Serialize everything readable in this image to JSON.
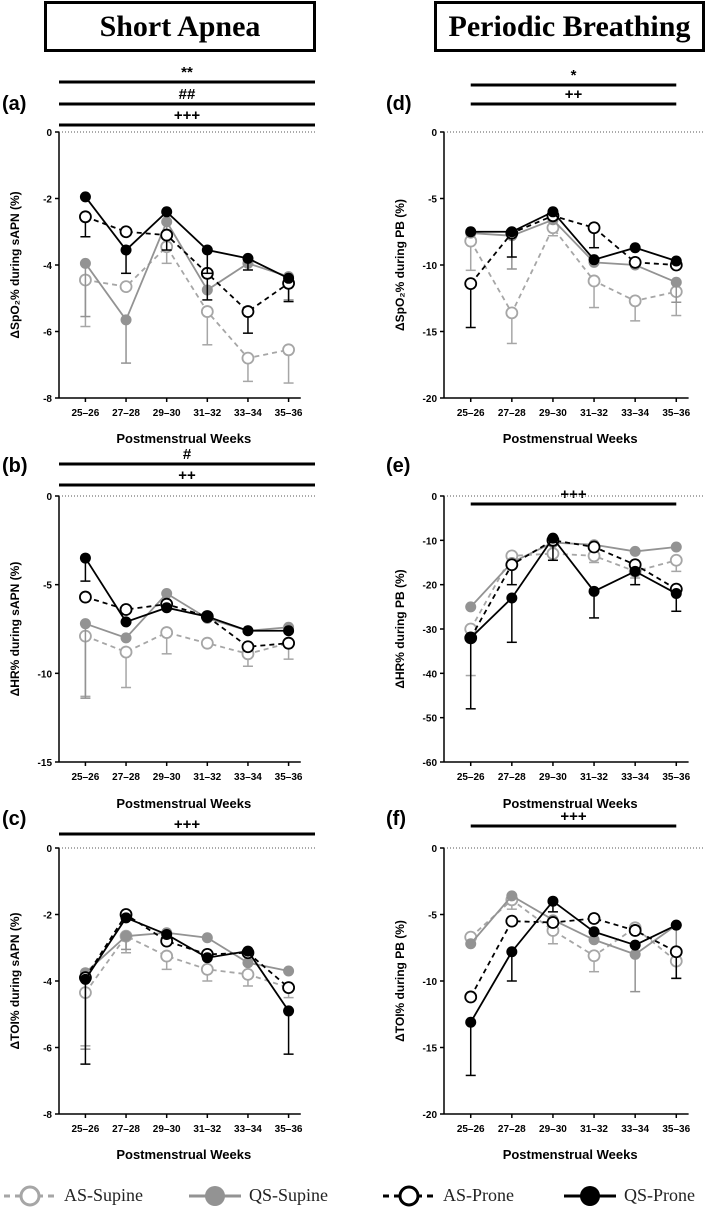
{
  "headers": {
    "left": "Short Apnea",
    "right": "Periodic Breathing"
  },
  "colors": {
    "as_supine": "#a6a6a6",
    "qs_supine": "#939393",
    "as_prone": "#000000",
    "qs_prone": "#000000"
  },
  "legend": [
    {
      "key": "as_supine",
      "label": "AS-Supine"
    },
    {
      "key": "qs_supine",
      "label": "QS-Supine"
    },
    {
      "key": "as_prone",
      "label": "AS-Prone"
    },
    {
      "key": "qs_prone",
      "label": "QS-Prone"
    }
  ],
  "chart_data": [
    {
      "panel": "(a)",
      "type": "line",
      "ylabel": "ΔSpO₂% during sAPN  (%)",
      "xlabel": "Postmenstrual Weeks",
      "categories": [
        "25–26",
        "27–28",
        "29–30",
        "31–32",
        "33–34",
        "35–36"
      ],
      "ylim": [
        -8,
        0
      ],
      "yticks": [
        0,
        -2,
        -4,
        -6,
        -8
      ],
      "significance": [
        {
          "label": "**",
          "span": [
            0,
            5
          ]
        },
        {
          "label": "##",
          "span": [
            0,
            5
          ]
        },
        {
          "label": "+++",
          "span": [
            0,
            5
          ]
        }
      ],
      "series": [
        {
          "key": "as_supine",
          "name": "AS-Supine",
          "values": [
            -4.45,
            -4.65,
            -3.45,
            -5.4,
            -6.8,
            -6.55
          ],
          "err": [
            1.4,
            0,
            0.5,
            1.0,
            0.7,
            1.0
          ],
          "dir": "down"
        },
        {
          "key": "qs_supine",
          "name": "QS-Supine",
          "values": [
            -3.95,
            -5.65,
            -2.7,
            -4.75,
            -3.95,
            -4.35
          ],
          "err": [
            1.6,
            1.3,
            0.5,
            0,
            0,
            0.7
          ],
          "dir": "down"
        },
        {
          "key": "as_prone",
          "name": "AS-Prone",
          "values": [
            -2.55,
            -3.0,
            -3.1,
            -4.25,
            -5.4,
            -4.55
          ],
          "err": [
            0.6,
            0,
            0.45,
            0.8,
            0.65,
            0.55
          ],
          "dir": "down"
        },
        {
          "key": "qs_prone",
          "name": "QS-Prone",
          "values": [
            -1.95,
            -3.55,
            -2.4,
            -3.55,
            -3.8,
            -4.4
          ],
          "err": [
            0,
            0.7,
            0,
            0.7,
            0.35,
            0
          ],
          "dir": "down"
        }
      ]
    },
    {
      "panel": "(b)",
      "type": "line",
      "ylabel": "ΔHR% during sAPN  (%)",
      "xlabel": "Postmenstrual Weeks",
      "categories": [
        "25–26",
        "27–28",
        "29–30",
        "31–32",
        "33–34",
        "35–36"
      ],
      "ylim": [
        -15,
        0
      ],
      "yticks": [
        0,
        -5,
        -10,
        -15
      ],
      "significance": [
        {
          "label": "#",
          "span": [
            0,
            5
          ]
        },
        {
          "label": "++",
          "span": [
            0,
            5
          ]
        }
      ],
      "series": [
        {
          "key": "as_supine",
          "name": "AS-Supine",
          "values": [
            -7.9,
            -8.8,
            -7.7,
            -8.3,
            -8.9,
            -8.3
          ],
          "err": [
            3.4,
            2.0,
            1.2,
            0,
            0.7,
            0.9
          ],
          "dir": "down"
        },
        {
          "key": "qs_supine",
          "name": "QS-Supine",
          "values": [
            -7.2,
            -8.0,
            -5.5,
            -6.9,
            -7.6,
            -7.4
          ],
          "err": [
            4.2,
            0,
            0,
            0,
            0,
            0
          ],
          "dir": "down"
        },
        {
          "key": "as_prone",
          "name": "AS-Prone",
          "values": [
            -5.7,
            -6.4,
            -6.1,
            -6.8,
            -8.5,
            -8.3
          ],
          "err": [
            0,
            0,
            0,
            0,
            0,
            0
          ],
          "dir": "down"
        },
        {
          "key": "qs_prone",
          "name": "QS-Prone",
          "values": [
            -3.5,
            -7.1,
            -6.3,
            -6.8,
            -7.6,
            -7.6
          ],
          "err": [
            1.3,
            0,
            0,
            0,
            0,
            0
          ],
          "dir": "down"
        }
      ]
    },
    {
      "panel": "(c)",
      "type": "line",
      "ylabel": "ΔTOI% during sAPN  (%)",
      "xlabel": "Postmenstrual Weeks",
      "categories": [
        "25–26",
        "27–28",
        "29–30",
        "31–32",
        "33–34",
        "35–36"
      ],
      "ylim": [
        -8,
        0
      ],
      "yticks": [
        0,
        -2,
        -4,
        -6,
        -8
      ],
      "significance": [
        {
          "label": "+++",
          "span": [
            0,
            5
          ]
        }
      ],
      "series": [
        {
          "key": "as_supine",
          "name": "AS-Supine",
          "values": [
            -4.35,
            -2.65,
            -3.25,
            -3.65,
            -3.8,
            -4.2
          ],
          "err": [
            1.6,
            0.5,
            0.4,
            0.35,
            0.35,
            0.3
          ],
          "dir": "down"
        },
        {
          "key": "qs_supine",
          "name": "QS-Supine",
          "values": [
            -3.75,
            -2.65,
            -2.55,
            -2.7,
            -3.45,
            -3.7
          ],
          "err": [
            2.3,
            0.4,
            0,
            0,
            0,
            0
          ],
          "dir": "down"
        },
        {
          "key": "as_prone",
          "name": "AS-Prone",
          "values": [
            -3.9,
            -2.0,
            -2.8,
            -3.2,
            -3.15,
            -4.2
          ],
          "err": [
            0,
            0,
            0,
            0,
            0,
            0
          ],
          "dir": "down"
        },
        {
          "key": "qs_prone",
          "name": "QS-Prone",
          "values": [
            -3.95,
            -2.1,
            -2.6,
            -3.3,
            -3.1,
            -4.9
          ],
          "err": [
            2.55,
            0,
            0,
            0,
            0,
            1.3
          ],
          "dir": "down"
        }
      ]
    },
    {
      "panel": "(d)",
      "type": "line",
      "ylabel": "ΔSpO₂% during PB  (%)",
      "xlabel": "Postmenstrual Weeks",
      "categories": [
        "25–26",
        "27–28",
        "29–30",
        "31–32",
        "33–34",
        "35–36"
      ],
      "ylim": [
        -20,
        0
      ],
      "yticks": [
        0,
        -5,
        -10,
        -15,
        -20
      ],
      "significance": [
        {
          "label": "*",
          "span": [
            0,
            5
          ]
        },
        {
          "label": "++",
          "span": [
            0,
            5
          ]
        }
      ],
      "series": [
        {
          "key": "as_supine",
          "name": "AS-Supine",
          "values": [
            -8.2,
            -13.6,
            -7.2,
            -11.2,
            -12.7,
            -12.0
          ],
          "err": [
            2.2,
            2.3,
            0.6,
            2.0,
            1.5,
            1.8
          ],
          "dir": "down"
        },
        {
          "key": "qs_supine",
          "name": "QS-Supine",
          "values": [
            -7.6,
            -7.8,
            -6.6,
            -9.8,
            -10.0,
            -11.3
          ],
          "err": [
            0,
            2.5,
            0,
            0,
            0,
            1.5
          ],
          "dir": "down"
        },
        {
          "key": "as_prone",
          "name": "AS-Prone",
          "values": [
            -11.4,
            -7.6,
            -6.3,
            -7.2,
            -9.8,
            -10.0
          ],
          "err": [
            3.3,
            1.8,
            0,
            1.5,
            0,
            0
          ],
          "dir": "down"
        },
        {
          "key": "qs_prone",
          "name": "QS-Prone",
          "values": [
            -7.5,
            -7.5,
            -6.0,
            -9.6,
            -8.7,
            -9.7
          ],
          "err": [
            0,
            0,
            0,
            0,
            0,
            0
          ],
          "dir": "down"
        }
      ]
    },
    {
      "panel": "(e)",
      "type": "line",
      "ylabel": "ΔHR% during PB  (%)",
      "xlabel": "Postmenstrual Weeks",
      "categories": [
        "25–26",
        "27–28",
        "29–30",
        "31–32",
        "33–34",
        "35–36"
      ],
      "ylim": [
        -60,
        0
      ],
      "yticks": [
        0,
        -10,
        -20,
        -30,
        -40,
        -50,
        -60
      ],
      "significance": [
        {
          "label": "+++",
          "span": [
            0,
            5
          ]
        }
      ],
      "series": [
        {
          "key": "as_supine",
          "name": "AS-Supine",
          "values": [
            -30.0,
            -13.5,
            -13.0,
            -13.5,
            -17.0,
            -14.5
          ],
          "err": [
            10.5,
            0,
            0,
            1.5,
            1.5,
            2.5
          ],
          "dir": "down"
        },
        {
          "key": "qs_supine",
          "name": "QS-Supine",
          "values": [
            -25.0,
            -15.0,
            -10.5,
            -11.0,
            -12.5,
            -11.5
          ],
          "err": [
            0,
            0,
            0,
            0,
            0,
            0
          ],
          "dir": "down"
        },
        {
          "key": "as_prone",
          "name": "AS-Prone",
          "values": [
            -32.0,
            -15.5,
            -10.0,
            -11.5,
            -15.5,
            -21.0
          ],
          "err": [
            0,
            4.5,
            4.5,
            0,
            4.5,
            0
          ],
          "dir": "down"
        },
        {
          "key": "qs_prone",
          "name": "QS-Prone",
          "values": [
            -32.0,
            -23.0,
            -9.5,
            -21.5,
            -17.0,
            -22.0
          ],
          "err": [
            16.0,
            10.0,
            0,
            6.0,
            0,
            4.0
          ],
          "dir": "down"
        }
      ]
    },
    {
      "panel": "(f)",
      "type": "line",
      "ylabel": "ΔTOI% during PB  (%)",
      "xlabel": "Postmenstrual Weeks",
      "categories": [
        "25–26",
        "27–28",
        "29–30",
        "31–32",
        "33–34",
        "35–36"
      ],
      "ylim": [
        -20,
        0
      ],
      "yticks": [
        0,
        -5,
        -10,
        -15,
        -20
      ],
      "significance": [
        {
          "label": "+++",
          "span": [
            0,
            5
          ]
        }
      ],
      "series": [
        {
          "key": "as_supine",
          "name": "AS-Supine",
          "values": [
            -6.7,
            -3.9,
            -6.2,
            -8.1,
            -6.0,
            -8.5
          ],
          "err": [
            0,
            0.7,
            1.0,
            1.2,
            0,
            1.3
          ],
          "dir": "down"
        },
        {
          "key": "qs_supine",
          "name": "QS-Supine",
          "values": [
            -7.2,
            -3.6,
            -5.4,
            -6.9,
            -8.0,
            -5.8
          ],
          "err": [
            0,
            0,
            0,
            0,
            2.8,
            4.0
          ],
          "dir": "down"
        },
        {
          "key": "as_prone",
          "name": "AS-Prone",
          "values": [
            -11.2,
            -5.5,
            -5.6,
            -5.3,
            -6.2,
            -7.8
          ],
          "err": [
            0,
            0,
            0,
            0,
            0,
            2.0
          ],
          "dir": "down"
        },
        {
          "key": "qs_prone",
          "name": "QS-Prone",
          "values": [
            -13.1,
            -7.8,
            -4.0,
            -6.3,
            -7.3,
            -5.8
          ],
          "err": [
            4.0,
            2.2,
            0.8,
            0,
            0,
            0
          ],
          "dir": "down"
        }
      ]
    }
  ]
}
